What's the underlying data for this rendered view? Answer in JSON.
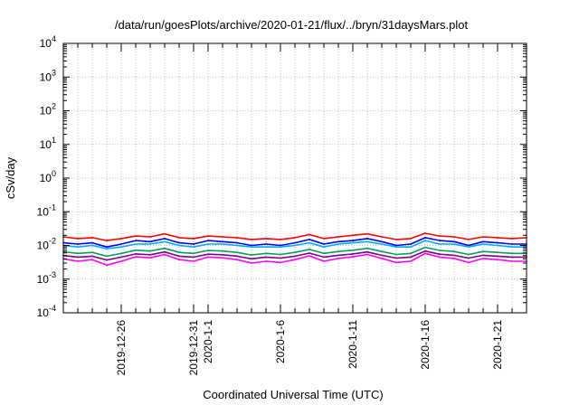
{
  "chart_data": {
    "type": "line",
    "title": "/data/run/goesPlots/archive/2020-01-21/flux/../bryn/31daysMars.plot",
    "xlabel": "Coordinated Universal Time (UTC)",
    "ylabel": "cSv/day",
    "y_scale": "log",
    "ylim": [
      0.0001,
      10000
    ],
    "xlim": [
      "2019-12-22",
      "2020-01-23"
    ],
    "grid": true,
    "y_ticks": [
      {
        "exp": "-4",
        "value": 0.0001
      },
      {
        "exp": "-3",
        "value": 0.001
      },
      {
        "exp": "-2",
        "value": 0.01
      },
      {
        "exp": "-1",
        "value": 0.1
      },
      {
        "exp": "0",
        "value": 1
      },
      {
        "exp": "1",
        "value": 10
      },
      {
        "exp": "2",
        "value": 100
      },
      {
        "exp": "3",
        "value": 1000
      },
      {
        "exp": "4",
        "value": 10000
      }
    ],
    "y_tick_base": "10",
    "x_ticks": [
      {
        "label": "2019-12-26",
        "date": "2019-12-26"
      },
      {
        "label": "2019-12-31",
        "date": "2019-12-31"
      },
      {
        "label": "2020-1-1",
        "date": "2020-01-01"
      },
      {
        "label": "2020-1-6",
        "date": "2020-01-06"
      },
      {
        "label": "2020-1-11",
        "date": "2020-01-11"
      },
      {
        "label": "2020-1-16",
        "date": "2020-01-16"
      },
      {
        "label": "2020-1-21",
        "date": "2020-01-21"
      }
    ],
    "x_gridlines": [
      "2019-12-23",
      "2019-12-24",
      "2019-12-25",
      "2019-12-26",
      "2019-12-27",
      "2019-12-28",
      "2019-12-29",
      "2019-12-30",
      "2019-12-31",
      "2020-01-01",
      "2020-01-02",
      "2020-01-03",
      "2020-01-04",
      "2020-01-05",
      "2020-01-06",
      "2020-01-07",
      "2020-01-08",
      "2020-01-09",
      "2020-01-10",
      "2020-01-11",
      "2020-01-12",
      "2020-01-13",
      "2020-01-14",
      "2020-01-15",
      "2020-01-16",
      "2020-01-17",
      "2020-01-18",
      "2020-01-19",
      "2020-01-20",
      "2020-01-21",
      "2020-01-22"
    ],
    "x": [
      "2019-12-22",
      "2019-12-23",
      "2019-12-24",
      "2019-12-25",
      "2019-12-26",
      "2019-12-27",
      "2019-12-28",
      "2019-12-29",
      "2019-12-30",
      "2019-12-31",
      "2020-01-01",
      "2020-01-02",
      "2020-01-03",
      "2020-01-04",
      "2020-01-05",
      "2020-01-06",
      "2020-01-07",
      "2020-01-08",
      "2020-01-09",
      "2020-01-10",
      "2020-01-11",
      "2020-01-12",
      "2020-01-13",
      "2020-01-14",
      "2020-01-15",
      "2020-01-16",
      "2020-01-17",
      "2020-01-18",
      "2020-01-19",
      "2020-01-20",
      "2020-01-21",
      "2020-01-22",
      "2020-01-23"
    ],
    "series": [
      {
        "color": "#ff0000",
        "values": [
          0.018,
          0.016,
          0.017,
          0.014,
          0.016,
          0.019,
          0.018,
          0.022,
          0.017,
          0.016,
          0.019,
          0.018,
          0.017,
          0.015,
          0.016,
          0.015,
          0.017,
          0.021,
          0.016,
          0.018,
          0.02,
          0.022,
          0.018,
          0.015,
          0.016,
          0.023,
          0.019,
          0.018,
          0.015,
          0.018,
          0.017,
          0.016,
          0.017
        ]
      },
      {
        "color": "#0000ff",
        "values": [
          0.012,
          0.011,
          0.012,
          0.009,
          0.011,
          0.014,
          0.013,
          0.016,
          0.012,
          0.011,
          0.014,
          0.013,
          0.012,
          0.01,
          0.011,
          0.01,
          0.012,
          0.015,
          0.011,
          0.013,
          0.014,
          0.016,
          0.013,
          0.01,
          0.011,
          0.017,
          0.014,
          0.013,
          0.01,
          0.013,
          0.012,
          0.011,
          0.011
        ]
      },
      {
        "color": "#00aaff",
        "values": [
          0.01,
          0.009,
          0.01,
          0.008,
          0.009,
          0.011,
          0.011,
          0.013,
          0.01,
          0.009,
          0.011,
          0.011,
          0.01,
          0.009,
          0.009,
          0.009,
          0.01,
          0.012,
          0.009,
          0.011,
          0.012,
          0.013,
          0.011,
          0.009,
          0.009,
          0.014,
          0.011,
          0.011,
          0.009,
          0.011,
          0.01,
          0.009,
          0.009
        ]
      },
      {
        "color": "#00a060",
        "values": [
          0.0065,
          0.0058,
          0.0062,
          0.0048,
          0.0058,
          0.0072,
          0.0068,
          0.0082,
          0.0062,
          0.0058,
          0.0071,
          0.0068,
          0.0062,
          0.0052,
          0.0058,
          0.0054,
          0.0062,
          0.0076,
          0.0058,
          0.0066,
          0.0072,
          0.0082,
          0.0066,
          0.0054,
          0.0058,
          0.0088,
          0.0071,
          0.0066,
          0.0054,
          0.0066,
          0.0062,
          0.0058,
          0.0058
        ]
      },
      {
        "color": "#800080",
        "values": [
          0.005,
          0.0045,
          0.0048,
          0.0037,
          0.0045,
          0.0056,
          0.0053,
          0.0064,
          0.0048,
          0.0045,
          0.0055,
          0.0053,
          0.0048,
          0.004,
          0.0045,
          0.0042,
          0.0048,
          0.0059,
          0.0045,
          0.0051,
          0.0056,
          0.0064,
          0.0051,
          0.0042,
          0.0045,
          0.0068,
          0.0055,
          0.0051,
          0.0042,
          0.0051,
          0.0048,
          0.0045,
          0.0045
        ]
      },
      {
        "color": "#ff00ff",
        "values": [
          0.004,
          0.0034,
          0.0038,
          0.0026,
          0.0034,
          0.0046,
          0.0043,
          0.0054,
          0.0038,
          0.0034,
          0.0045,
          0.0043,
          0.0038,
          0.003,
          0.0034,
          0.0031,
          0.0038,
          0.0049,
          0.0034,
          0.0041,
          0.0046,
          0.0054,
          0.0041,
          0.0031,
          0.0034,
          0.0058,
          0.0045,
          0.0041,
          0.0031,
          0.0041,
          0.0038,
          0.0034,
          0.0034
        ]
      }
    ]
  }
}
